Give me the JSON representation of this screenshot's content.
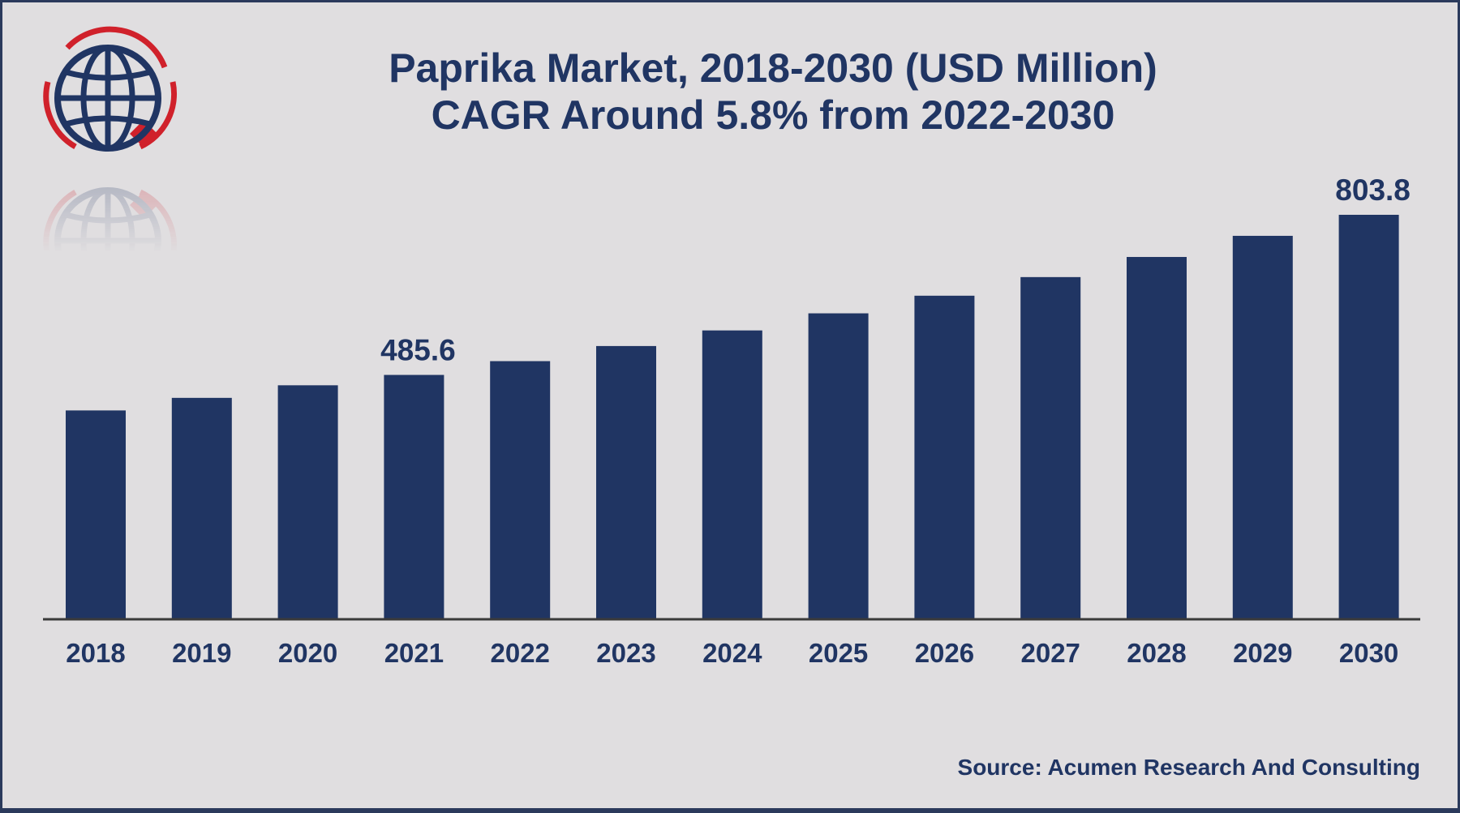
{
  "colors": {
    "bar": "#203563",
    "text": "#203563",
    "background": "#e0dee0",
    "border": "#2b3a5c",
    "logo_red": "#d0212b"
  },
  "logo": {
    "icon": "globe-logo-icon"
  },
  "chart_data": {
    "type": "bar",
    "title": "Paprika Market, 2018-2030 (USD Million)",
    "subtitle": "CAGR Around 5.8% from 2022-2030",
    "xlabel": "",
    "ylabel": "",
    "categories": [
      "2018",
      "2019",
      "2020",
      "2021",
      "2022",
      "2023",
      "2024",
      "2025",
      "2026",
      "2027",
      "2028",
      "2029",
      "2030"
    ],
    "values": [
      415,
      440,
      465,
      485.6,
      513,
      543,
      574,
      608,
      643,
      680,
      720,
      762,
      803.8
    ],
    "data_labels": [
      {
        "category": "2021",
        "text": "485.6"
      },
      {
        "category": "2030",
        "text": "803.8"
      }
    ],
    "ylim": [
      0,
      830
    ],
    "grid": false,
    "legend": "none"
  },
  "source": "Source: Acumen Research And Consulting"
}
